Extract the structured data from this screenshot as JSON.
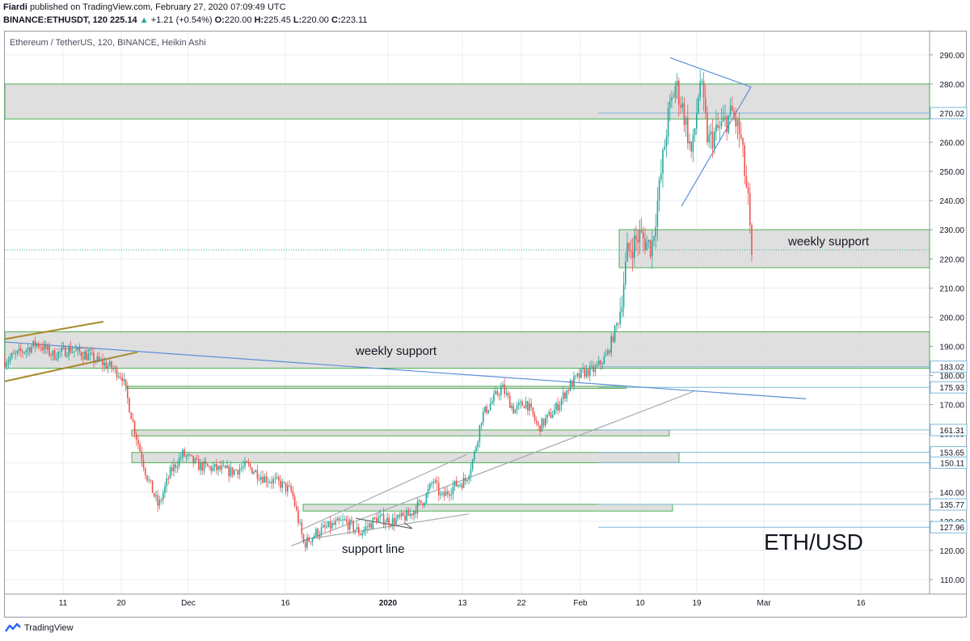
{
  "header": {
    "author": "Fiardi",
    "published": "published on TradingView.com, February 27, 2020 07:09:49 UTC",
    "symbol": "BINANCE:ETHUSDT, 120",
    "last": "225.14",
    "change": "+1.21 (+0.54%)",
    "open_label": "O:",
    "open": "220.00",
    "high_label": "H:",
    "high": "225.45",
    "low_label": "L:",
    "low": "220.00",
    "close_label": "C:",
    "close": "223.11"
  },
  "legend_title": "Ethereum / TetherUS, 120, BINANCE, Heikin Ashi",
  "footer": {
    "brand": "TradingView"
  },
  "colors": {
    "up": "#26a69a",
    "down": "#ef5350",
    "grid": "#e8ecf1",
    "zone": "#d9d9d9",
    "zone_border": "#4caf50",
    "trend_blue": "#5b8fd6",
    "channel_gold": "#a68b2c",
    "price_line": "#26a69a"
  },
  "chart_data": {
    "type": "candlestick",
    "title": "ETH/USD",
    "instrument": "Ethereum / TetherUS, 120, BINANCE, Heikin Ashi",
    "x_labels": [
      "11",
      "20",
      "Dec",
      "16",
      "2020",
      "13",
      "22",
      "Feb",
      "10",
      "19",
      "Mar",
      "16"
    ],
    "y_ticks": [
      110,
      120,
      130,
      140,
      150,
      160,
      170,
      180,
      190,
      200,
      210,
      220,
      230,
      240,
      250,
      260,
      270,
      280,
      290
    ],
    "y_tick_labels": [
      "110.00",
      "120.00",
      "130.00",
      "140.00",
      "150.00",
      "160.00",
      "170.00",
      "180.00",
      "190.00",
      "200.00",
      "210.00",
      "220.00",
      "230.00",
      "240.00",
      "250.00",
      "260.00",
      "270.00",
      "280.00",
      "290.00"
    ],
    "ylim": [
      105,
      298
    ],
    "price_tags": [
      {
        "label": "270.02",
        "value": 270.02
      },
      {
        "label": "183.02",
        "value": 183.02
      },
      {
        "label": "175.93",
        "value": 175.93
      },
      {
        "label": "161.31",
        "value": 161.31
      },
      {
        "label": "153.65",
        "value": 153.65
      },
      {
        "label": "150.11",
        "value": 150.11
      },
      {
        "label": "135.77",
        "value": 135.77
      },
      {
        "label": "127.96",
        "value": 127.96
      }
    ],
    "zones": [
      {
        "top": 280,
        "bottom": 268
      },
      {
        "top": 230,
        "bottom": 217
      },
      {
        "top": 195,
        "bottom": 182.5
      },
      {
        "top": 176.3,
        "bottom": 175.6
      },
      {
        "top": 161.3,
        "bottom": 159.3
      },
      {
        "top": 153.6,
        "bottom": 150.1
      },
      {
        "top": 135.8,
        "bottom": 133.5
      }
    ],
    "annotations": [
      {
        "text": "weekly support",
        "at": 226
      },
      {
        "text": "weekly support",
        "at": 188.5
      },
      {
        "text": "support line",
        "at": 120.5
      },
      {
        "text": "ETH/USD",
        "at": 123
      }
    ],
    "series_anchors": [
      [
        0,
        185
      ],
      [
        20,
        188
      ],
      [
        40,
        191
      ],
      [
        60,
        187
      ],
      [
        80,
        189
      ],
      [
        100,
        187
      ],
      [
        115,
        185
      ],
      [
        130,
        183
      ],
      [
        145,
        180
      ],
      [
        160,
        162
      ],
      [
        175,
        146
      ],
      [
        190,
        135
      ],
      [
        205,
        147
      ],
      [
        220,
        153
      ],
      [
        240,
        149
      ],
      [
        260,
        148
      ],
      [
        280,
        147
      ],
      [
        300,
        149
      ],
      [
        320,
        145
      ],
      [
        340,
        143
      ],
      [
        355,
        140
      ],
      [
        370,
        122
      ],
      [
        385,
        126
      ],
      [
        400,
        128
      ],
      [
        420,
        130
      ],
      [
        440,
        126
      ],
      [
        460,
        131
      ],
      [
        480,
        130
      ],
      [
        500,
        132
      ],
      [
        510,
        135
      ],
      [
        520,
        138
      ],
      [
        530,
        144
      ],
      [
        540,
        138
      ],
      [
        555,
        142
      ],
      [
        570,
        144
      ],
      [
        580,
        152
      ],
      [
        590,
        166
      ],
      [
        600,
        170
      ],
      [
        615,
        176
      ],
      [
        630,
        168
      ],
      [
        645,
        171
      ],
      [
        660,
        162
      ],
      [
        680,
        168
      ],
      [
        700,
        177
      ],
      [
        715,
        181
      ],
      [
        730,
        182
      ],
      [
        745,
        187
      ],
      [
        760,
        200
      ],
      [
        770,
        222
      ],
      [
        785,
        228
      ],
      [
        800,
        224
      ],
      [
        810,
        245
      ],
      [
        820,
        268
      ],
      [
        830,
        280
      ],
      [
        840,
        270
      ],
      [
        850,
        255
      ],
      [
        860,
        282
      ],
      [
        870,
        260
      ],
      [
        885,
        265
      ],
      [
        900,
        270
      ],
      [
        910,
        262
      ],
      [
        920,
        238
      ],
      [
        925,
        213
      ]
    ]
  }
}
